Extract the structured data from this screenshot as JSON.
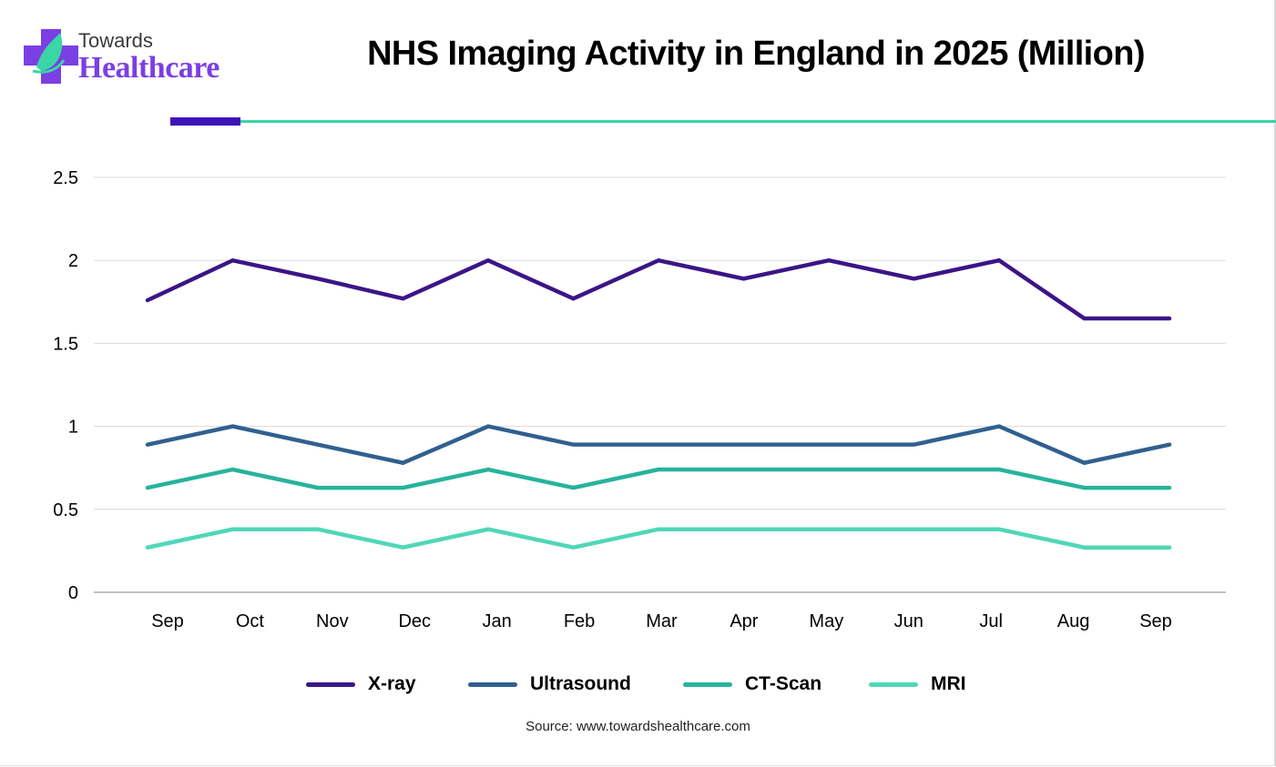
{
  "brand": {
    "logo_top": "Towards",
    "logo_bottom": "Healthcare",
    "logo_icon": "plus-leaf-icon",
    "colors": {
      "purple": "#7b3fe4",
      "teal": "#3ad6a6",
      "accent_dark": "#3d14b8"
    }
  },
  "chart_data": {
    "type": "line",
    "title": "NHS Imaging Activity in England in 2025 (Million)",
    "xlabel": "",
    "ylabel": "",
    "categories": [
      "Sep",
      "Oct",
      "Nov",
      "Dec",
      "Jan",
      "Feb",
      "Mar",
      "Apr",
      "May",
      "Jun",
      "Jul",
      "Aug",
      "Sep"
    ],
    "ylim": [
      0,
      2.5
    ],
    "yticks": [
      "0",
      "0.5",
      "1",
      "1.5",
      "2",
      "2.5"
    ],
    "ytick_values": [
      0,
      0.5,
      1,
      1.5,
      2,
      2.5
    ],
    "grid": true,
    "legend_position": "bottom",
    "series": [
      {
        "name": "X-ray",
        "color": "#3b1587",
        "values": [
          1.76,
          2.0,
          1.89,
          1.77,
          2.0,
          1.77,
          2.0,
          1.89,
          2.0,
          1.89,
          2.0,
          1.65,
          1.65
        ]
      },
      {
        "name": "Ultrasound",
        "color": "#30608f",
        "values": [
          0.89,
          1.0,
          0.89,
          0.78,
          1.0,
          0.89,
          0.89,
          0.89,
          0.89,
          0.89,
          1.0,
          0.78,
          0.89
        ]
      },
      {
        "name": "CT-Scan",
        "color": "#27b39c",
        "values": [
          0.63,
          0.74,
          0.63,
          0.63,
          0.74,
          0.63,
          0.74,
          0.74,
          0.74,
          0.74,
          0.74,
          0.63,
          0.63
        ]
      },
      {
        "name": "MRI",
        "color": "#4fd7b7",
        "values": [
          0.27,
          0.38,
          0.38,
          0.27,
          0.38,
          0.27,
          0.38,
          0.38,
          0.38,
          0.38,
          0.38,
          0.27,
          0.27
        ]
      }
    ],
    "source": "Source: www.towardshealthcare.com"
  }
}
